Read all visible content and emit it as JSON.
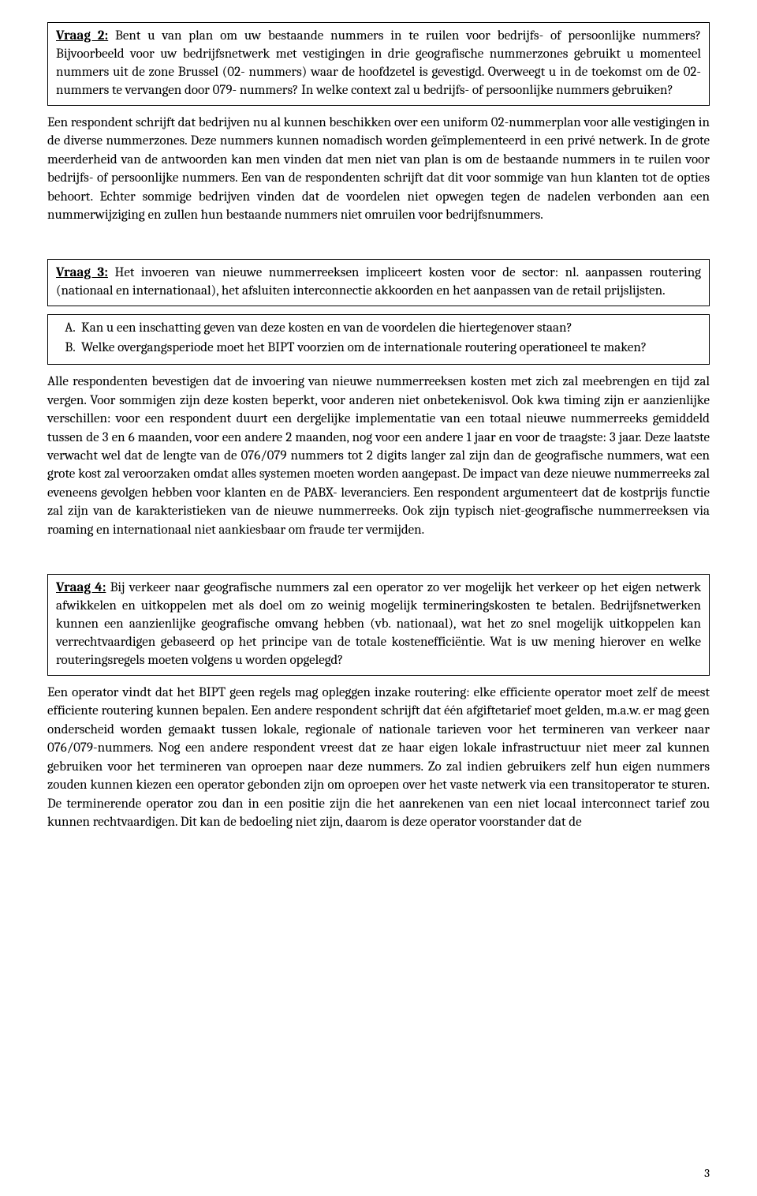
{
  "q2": {
    "label": "Vraag 2:",
    "text": " Bent u van plan om uw bestaande nummers in te ruilen voor bedrijfs- of persoonlijke nummers? Bijvoorbeeld voor uw bedrijfsnetwerk met vestigingen in drie geografische nummerzones gebruikt u momenteel nummers uit de zone Brussel (02- nummers) waar de hoofdzetel is gevestigd. Overweegt u in de toekomst om de 02- nummers te vervangen door 079- nummers? In welke context zal u bedrijfs- of persoonlijke nummers gebruiken?",
    "response": "Een respondent schrijft dat bedrijven nu al kunnen beschikken over een uniform 02-nummerplan voor alle vestigingen in de diverse nummerzones. Deze nummers kunnen nomadisch worden geïmplementeerd in een privé netwerk. In de grote meerderheid van de antwoorden kan men vinden dat men niet van plan is om de bestaande nummers in te ruilen voor bedrijfs- of persoonlijke nummers. Een van de respondenten schrijft dat dit voor sommige van hun klanten tot de opties behoort. Echter sommige bedrijven vinden dat de voordelen niet opwegen tegen de nadelen verbonden aan een nummerwijziging en zullen hun bestaande nummers niet omruilen voor bedrijfsnummers."
  },
  "q3": {
    "label": "Vraag 3:",
    "text": " Het invoeren van nieuwe nummerreeksen impliceert kosten voor de sector: nl. aanpassen routering (nationaal en internationaal), het afsluiten interconnectie akkoorden en het aanpassen van de retail prijslijsten.",
    "subA": "Kan u een inschatting geven van deze kosten en van de voordelen die hiertegenover staan?",
    "subB": "Welke overgangsperiode moet het BIPT voorzien om de internationale routering operationeel te maken?",
    "response": "Alle respondenten bevestigen dat de invoering van nieuwe nummerreeksen kosten met zich zal meebrengen en tijd zal vergen. Voor sommigen zijn deze kosten beperkt, voor anderen niet onbetekenisvol. Ook kwa timing zijn er aanzienlijke verschillen: voor een respondent duurt een dergelijke implementatie van een totaal nieuwe nummerreeks gemiddeld tussen de 3 en 6 maanden, voor een andere 2 maanden, nog voor een andere 1 jaar en voor de traagste: 3 jaar. Deze laatste verwacht wel dat de lengte van de 076/079 nummers tot 2 digits langer zal zijn dan de geografische nummers, wat een grote kost zal veroorzaken omdat alles systemen moeten worden aangepast. De impact van deze nieuwe nummerreeks zal eveneens gevolgen hebben voor klanten en de PABX- leveranciers. Een respondent argumenteert dat de kostprijs functie zal zijn van de karakteristieken van de nieuwe nummerreeks. Ook zijn typisch niet-geografische nummerreeksen via roaming en internationaal niet aankiesbaar om fraude ter vermijden."
  },
  "q4": {
    "label": "Vraag 4:",
    "text": " Bij verkeer naar geografische nummers zal een operator zo ver mogelijk het verkeer op het eigen netwerk afwikkelen en uitkoppelen met als doel om zo weinig mogelijk termineringskosten te betalen. Bedrijfsnetwerken kunnen een aanzienlijke geografische omvang hebben (vb. nationaal), wat het zo snel mogelijk uitkoppelen kan verrechtvaardigen gebaseerd op het principe van de totale kostenefficiëntie. Wat is uw mening hierover en welke routeringsregels moeten volgens u worden opgelegd?",
    "response": "Een operator vindt dat het BIPT geen regels mag opleggen inzake routering: elke efficiente operator moet zelf de meest efficiente routering kunnen bepalen. Een andere respondent schrijft dat één afgiftetarief moet gelden, m.a.w. er mag geen onderscheid worden gemaakt tussen lokale, regionale of nationale tarieven voor het termineren van verkeer naar 076/079-nummers. Nog een andere respondent vreest dat ze haar eigen lokale infrastructuur niet meer zal kunnen gebruiken voor het termineren van oproepen naar deze nummers. Zo zal indien gebruikers zelf hun eigen nummers zouden kunnen kiezen een operator gebonden zijn om oproepen over het vaste netwerk via een transitoperator te sturen. De terminerende operator zou dan in een positie zijn die het aanrekenen van een niet locaal interconnect tarief zou kunnen rechtvaardigen. Dit kan de bedoeling niet zijn, daarom is deze operator voorstander dat de"
  },
  "pageNumber": "3"
}
